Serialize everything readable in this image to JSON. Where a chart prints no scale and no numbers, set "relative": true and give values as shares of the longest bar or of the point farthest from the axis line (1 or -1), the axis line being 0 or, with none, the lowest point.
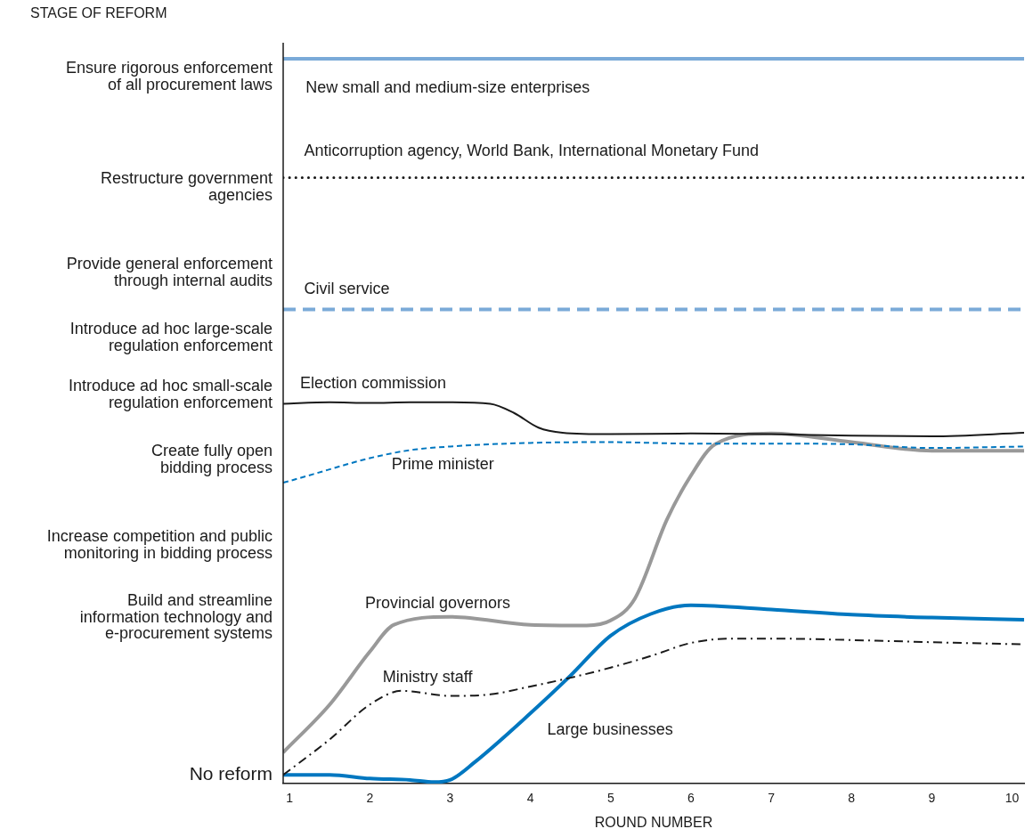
{
  "chart_data": {
    "type": "line",
    "xlabel": "ROUND NUMBER",
    "xlim": [
      0.92,
      10.15
    ],
    "xticks": [
      1,
      2,
      3,
      4,
      5,
      6,
      7,
      8,
      9,
      10
    ],
    "relative": true,
    "annotations": [
      "STAGE OF REFORM",
      "No reform",
      "Build and streamline\ninformation technology and\ne-procurement systems",
      "Increase competition and public\nmonitoring in bidding process",
      "Create fully open\nbidding process",
      "Introduce ad hoc small-scale\nregulation enforcement",
      "Introduce ad hoc large-scale\nregulation enforcement",
      "Provide general enforcement\nthrough internal audits",
      "Restructure government\nagencies",
      "Ensure rigorous enforcement\nof all procurement laws"
    ],
    "grid": false,
    "legend": false,
    "marker": "none",
    "series": [
      {
        "name": "New small and medium-size enterprises",
        "color": "#7aaad8",
        "line_style": "solid",
        "x": [
          0.92,
          10.15
        ],
        "values": [
          1.0,
          1.0
        ]
      },
      {
        "name": "Anticorruption agency, World Bank, International Monetary Fund",
        "color": "#1a1a1a",
        "line_style": "dotted",
        "x": [
          0.92,
          10.15
        ],
        "values": [
          0.836,
          0.836
        ]
      },
      {
        "name": "Civil service",
        "color": "#7aaad8",
        "line_style": "dashed",
        "x": [
          0.92,
          10.15
        ],
        "values": [
          0.654,
          0.654
        ]
      },
      {
        "name": "Election commission",
        "color": "#1a1a1a",
        "line_style": "solid",
        "x": [
          0.92,
          1.5,
          2,
          2.5,
          3,
          3.5,
          3.8,
          4.1,
          4.4,
          5,
          6,
          7,
          8,
          9,
          10.15
        ],
        "values": [
          0.524,
          0.526,
          0.525,
          0.526,
          0.526,
          0.524,
          0.511,
          0.491,
          0.484,
          0.482,
          0.483,
          0.482,
          0.48,
          0.479,
          0.484
        ]
      },
      {
        "name": "Prime minister",
        "color": "#0077c0",
        "line_style": "dashed",
        "x": [
          0.92,
          1.3,
          1.7,
          2,
          2.5,
          3,
          4,
          5,
          6,
          7,
          8,
          9,
          10.15
        ],
        "values": [
          0.415,
          0.427,
          0.44,
          0.449,
          0.46,
          0.465,
          0.47,
          0.471,
          0.469,
          0.469,
          0.468,
          0.463,
          0.465
        ]
      },
      {
        "name": "Provincial governors",
        "color": "#999999",
        "line_style": "solid",
        "x": [
          0.92,
          1.5,
          2,
          2.3,
          3,
          4,
          4.7,
          5,
          5.3,
          5.7,
          6,
          6.3,
          7,
          8,
          9,
          10.15
        ],
        "values": [
          0.043,
          0.109,
          0.182,
          0.219,
          0.23,
          0.219,
          0.218,
          0.225,
          0.255,
          0.364,
          0.425,
          0.468,
          0.483,
          0.471,
          0.459,
          0.459
        ]
      },
      {
        "name": "Ministry staff",
        "color": "#1a1a1a",
        "line_style": "dashdot",
        "x": [
          0.92,
          1.5,
          2,
          2.4,
          3,
          3.5,
          4,
          4.5,
          5,
          5.5,
          6,
          6.5,
          7,
          8,
          9,
          10.15
        ],
        "values": [
          0.012,
          0.061,
          0.109,
          0.128,
          0.121,
          0.123,
          0.134,
          0.146,
          0.16,
          0.176,
          0.194,
          0.2,
          0.2,
          0.198,
          0.195,
          0.192
        ]
      },
      {
        "name": "Large businesses",
        "color": "#0077c0",
        "line_style": "solid",
        "x": [
          0.92,
          1.5,
          2,
          2.5,
          2.8,
          3,
          3.3,
          4,
          4.5,
          5,
          5.5,
          6,
          7,
          8,
          9,
          10.15
        ],
        "values": [
          0.012,
          0.012,
          0.007,
          0.005,
          0.002,
          0.005,
          0.029,
          0.097,
          0.149,
          0.204,
          0.234,
          0.246,
          0.24,
          0.233,
          0.229,
          0.226
        ]
      }
    ]
  }
}
